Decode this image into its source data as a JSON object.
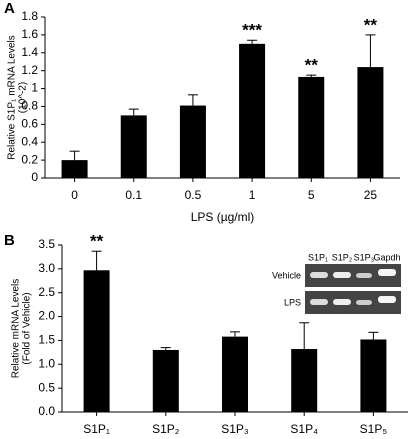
{
  "chart_data": [
    {
      "type": "bar",
      "panel": "A",
      "ylabel": [
        "Relative S1P₁ mRNA Levels",
        "(10^-2)"
      ],
      "xlabel": "LPS (µg/ml)",
      "categories": [
        "0",
        "0.1",
        "0.5",
        "1",
        "5",
        "25"
      ],
      "values": [
        0.2,
        0.7,
        0.81,
        1.5,
        1.13,
        1.24
      ],
      "errors": [
        0.1,
        0.07,
        0.12,
        0.04,
        0.02,
        0.36
      ],
      "annotations": [
        null,
        null,
        null,
        "***",
        "**",
        "**"
      ],
      "color": "#000000",
      "ylim": [
        0,
        1.8
      ],
      "yticks": [
        0,
        0.2,
        0.4,
        0.6,
        0.8,
        1,
        1.2,
        1.4,
        1.6,
        1.8
      ]
    },
    {
      "type": "bar",
      "panel": "B",
      "ylabel": [
        "Relative mRNA Levels",
        "(Fold of Vehicle)"
      ],
      "categories": [
        "S1P₁",
        "S1P₂",
        "S1P₃",
        "S1P₄",
        "S1P₅"
      ],
      "values": [
        2.97,
        1.3,
        1.58,
        1.32,
        1.52
      ],
      "errors": [
        0.4,
        0.05,
        0.1,
        0.55,
        0.15
      ],
      "annotations": [
        "**",
        null,
        null,
        null,
        null
      ],
      "color": "#000000",
      "ylim": [
        0,
        3.5
      ],
      "yticks": [
        {
          "value": 0,
          "label": "0.0"
        },
        {
          "value": 0.5,
          "label": "0.5"
        },
        {
          "value": 1,
          "label": "1.0"
        },
        {
          "value": 1.5,
          "label": "1.5"
        },
        {
          "value": 2,
          "label": "2.0"
        },
        {
          "value": 2.5,
          "label": "2.5"
        },
        {
          "value": 3,
          "label": "3.0"
        },
        {
          "value": 3.5,
          "label": "3.5"
        }
      ],
      "inset": {
        "columns": [
          "S1P₁",
          "S1P₂",
          "S1P₃",
          "Gapdh"
        ],
        "rows": [
          "Vehicle",
          "LPS"
        ]
      }
    }
  ]
}
